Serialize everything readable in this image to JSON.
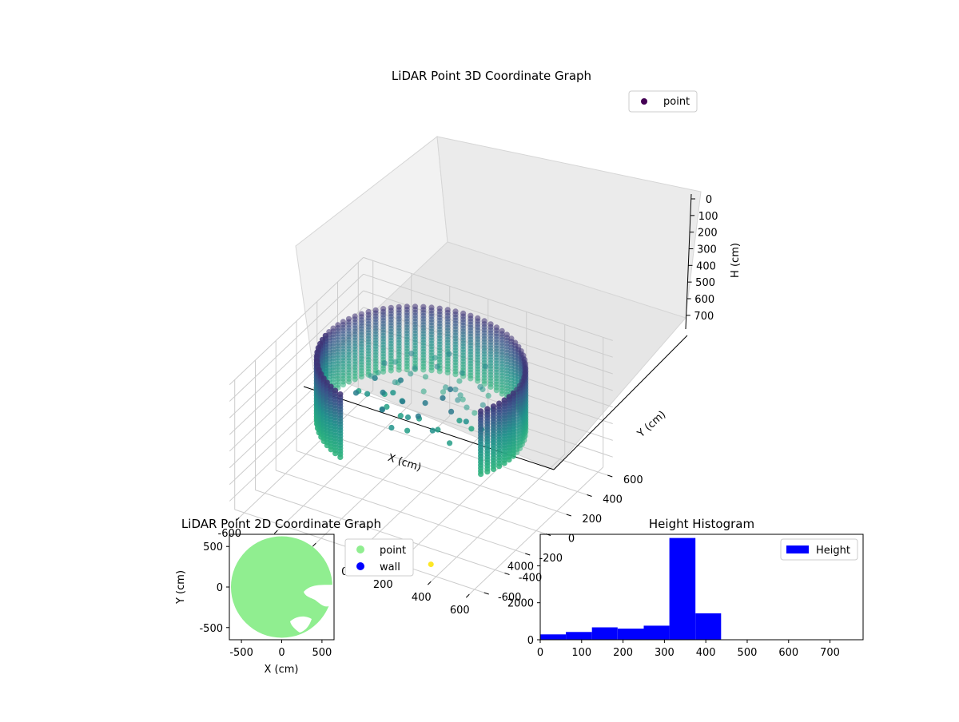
{
  "colors": {
    "viridis": [
      "#440154",
      "#3b528b",
      "#21918c",
      "#2ab07f",
      "#5ec962",
      "#fde725"
    ],
    "point_2d": "#90ee90",
    "wall_2d": "#0000ff",
    "hist_bar": "#0000ff"
  },
  "chart_data": [
    {
      "type": "scatter",
      "title": "LiDAR Point 3D Coordinate Graph",
      "xlabel": "X (cm)",
      "ylabel": "Y (cm)",
      "zlabel": "H (cm)",
      "xticks": [
        -600,
        -400,
        -200,
        0,
        200,
        400,
        600
      ],
      "yticks": [
        -600,
        -400,
        -200,
        0,
        200,
        400,
        600
      ],
      "zticks": [
        0,
        100,
        200,
        300,
        400,
        500,
        600,
        700
      ],
      "xlim": [
        -650,
        650
      ],
      "ylim": [
        -650,
        650
      ],
      "zlim": [
        0,
        780
      ],
      "z_inverted": true,
      "legend": [
        {
          "label": "point",
          "color": "#440154"
        }
      ],
      "legend_position": "top-right",
      "grid": true,
      "colormap": "viridis",
      "shape": {
        "ring_radius_cm": 480,
        "wall_top_cm": 0,
        "wall_bottom_cm": 380,
        "opening_angle_deg": [
          -110,
          -30
        ]
      },
      "outlier_point": {
        "x": 330,
        "y": -520,
        "h": 780
      }
    },
    {
      "type": "scatter",
      "title": "LiDAR Point 2D Coordinate Graph",
      "xlabel": "X (cm)",
      "ylabel": "Y (cm)",
      "xticks": [
        -500,
        0,
        500
      ],
      "yticks": [
        -500,
        0,
        500
      ],
      "xlim": [
        -650,
        650
      ],
      "ylim": [
        -650,
        650
      ],
      "legend": [
        {
          "label": "point",
          "color": "#90ee90"
        },
        {
          "label": "wall",
          "color": "#0000ff"
        }
      ],
      "legend_position": "outside right",
      "grid": false,
      "disk_radius_cm": 640
    },
    {
      "type": "bar",
      "title": "Height Histogram",
      "xlabel": "",
      "ylabel": "",
      "bin_edges": [
        0,
        62,
        125,
        187,
        250,
        312,
        375,
        437,
        500,
        562,
        625,
        687,
        750
      ],
      "values": [
        290,
        420,
        670,
        600,
        760,
        5500,
        1430,
        0,
        0,
        0,
        0,
        0
      ],
      "xticks": [
        0,
        100,
        200,
        300,
        400,
        500,
        600,
        700
      ],
      "yticks": [
        0,
        2000,
        4000
      ],
      "xlim": [
        0,
        780
      ],
      "ylim": [
        0,
        5700
      ],
      "legend": [
        {
          "label": "Height",
          "color": "#0000ff"
        }
      ],
      "legend_position": "top-right",
      "grid": false
    }
  ]
}
